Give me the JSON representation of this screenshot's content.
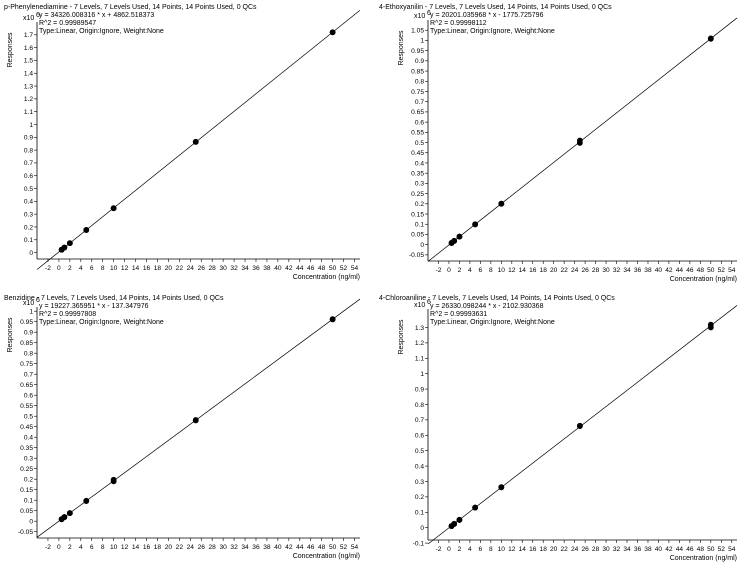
{
  "chart_data": [
    {
      "type": "scatter",
      "title": "p-Phenylenediamine - 7 Levels, 7 Levels Used, 14 Points, 14 Points Used, 0 QCs",
      "equation": "y = 34326.008316 * x + 4862.518373",
      "r2": "R^2 = 0.99989547",
      "type_line": "Type:Linear, Origin:Ignore, Weight:None",
      "ylabel": "Responses",
      "y_exponent": "x10",
      "y_exponent_power": "6",
      "xlabel": "Concentration (ng/ml)",
      "xlim": [
        -4,
        55
      ],
      "ylim": [
        -0.05,
        1.8
      ],
      "x_ticks": [
        "-2",
        "0",
        "2",
        "4",
        "6",
        "8",
        "10",
        "12",
        "14",
        "16",
        "18",
        "20",
        "22",
        "24",
        "26",
        "28",
        "30",
        "32",
        "34",
        "36",
        "38",
        "40",
        "42",
        "44",
        "46",
        "48",
        "50",
        "52",
        "54"
      ],
      "y_ticks": [
        "0",
        "0.1",
        "0.2",
        "0.3",
        "0.4",
        "0.5",
        "0.6",
        "0.7",
        "0.8",
        "0.9",
        "1",
        "1.1",
        "1.2",
        "1.3",
        "1.4",
        "1.5",
        "1.6",
        "1.7"
      ],
      "points": [
        [
          0.5,
          0.022
        ],
        [
          0.5,
          0.023
        ],
        [
          1,
          0.039
        ],
        [
          1,
          0.04
        ],
        [
          2,
          0.073
        ],
        [
          2,
          0.074
        ],
        [
          5,
          0.176
        ],
        [
          5,
          0.177
        ],
        [
          10,
          0.346
        ],
        [
          10,
          0.347
        ],
        [
          25,
          0.864
        ],
        [
          25,
          0.865
        ],
        [
          50,
          1.719
        ],
        [
          50,
          1.72
        ]
      ],
      "fit": [
        -4,
        55
      ]
    },
    {
      "type": "scatter",
      "title": "4-Ethoxyanilin - 7 Levels, 7 Levels Used, 14 Points, 14 Points Used, 0 QCs",
      "equation": "y = 20201.035968 * x - 1775.725796",
      "r2": "R^2 = 0.99998112",
      "type_line": "Type:Linear, Origin:Ignore, Weight:None",
      "ylabel": "Responses",
      "y_exponent": "x10",
      "y_exponent_power": "6",
      "xlabel": "Concentration (ng/ml)",
      "xlim": [
        -4,
        55
      ],
      "ylim": [
        -0.08,
        1.1
      ],
      "x_ticks": [
        "-2",
        "0",
        "2",
        "4",
        "6",
        "8",
        "10",
        "12",
        "14",
        "16",
        "18",
        "20",
        "22",
        "24",
        "26",
        "28",
        "30",
        "32",
        "34",
        "36",
        "38",
        "40",
        "42",
        "44",
        "46",
        "48",
        "50",
        "52",
        "54"
      ],
      "y_ticks": [
        "-0.05",
        "0",
        "0.05",
        "0.1",
        "0.15",
        "0.2",
        "0.25",
        "0.3",
        "0.35",
        "0.4",
        "0.45",
        "0.5",
        "0.55",
        "0.6",
        "0.65",
        "0.7",
        "0.75",
        "0.8",
        "0.85",
        "0.9",
        "0.95",
        "1",
        "1.05"
      ],
      "points": [
        [
          0.5,
          0.008
        ],
        [
          0.5,
          0.009
        ],
        [
          1,
          0.018
        ],
        [
          1,
          0.019
        ],
        [
          2,
          0.039
        ],
        [
          2,
          0.04
        ],
        [
          5,
          0.099
        ],
        [
          5,
          0.1
        ],
        [
          10,
          0.2
        ],
        [
          10,
          0.201
        ],
        [
          25,
          0.498
        ],
        [
          25,
          0.51
        ],
        [
          50,
          1.008
        ],
        [
          50,
          1.01
        ]
      ],
      "fit": [
        -4,
        55
      ]
    },
    {
      "type": "scatter",
      "title": "Benzidine - 7 Levels, 7 Levels Used, 14 Points, 14 Points Used, 0 QCs",
      "equation": "y = 19227.365951 * x - 137.347976",
      "r2": "R^2 = 0.99997808",
      "type_line": "Type:Linear, Origin:Ignore, Weight:None",
      "ylabel": "Responses",
      "y_exponent": "x10",
      "y_exponent_power": "6",
      "xlabel": "Concentration (ng/ml)",
      "xlim": [
        -4,
        55
      ],
      "ylim": [
        -0.08,
        1.02
      ],
      "x_ticks": [
        "-2",
        "0",
        "2",
        "4",
        "6",
        "8",
        "10",
        "12",
        "14",
        "16",
        "18",
        "20",
        "22",
        "24",
        "26",
        "28",
        "30",
        "32",
        "34",
        "36",
        "38",
        "40",
        "42",
        "44",
        "46",
        "48",
        "50",
        "52",
        "54"
      ],
      "y_ticks": [
        "-0.05",
        "0",
        "0.05",
        "0.1",
        "0.15",
        "0.2",
        "0.25",
        "0.3",
        "0.35",
        "0.4",
        "0.45",
        "0.5",
        "0.55",
        "0.6",
        "0.65",
        "0.7",
        "0.75",
        "0.8",
        "0.85",
        "0.9",
        "0.95",
        "1"
      ],
      "points": [
        [
          0.5,
          0.009
        ],
        [
          0.5,
          0.01
        ],
        [
          1,
          0.019
        ],
        [
          1,
          0.02
        ],
        [
          2,
          0.038
        ],
        [
          2,
          0.039
        ],
        [
          5,
          0.096
        ],
        [
          5,
          0.097
        ],
        [
          10,
          0.19
        ],
        [
          10,
          0.197
        ],
        [
          25,
          0.48
        ],
        [
          25,
          0.482
        ],
        [
          50,
          0.961
        ],
        [
          50,
          0.962
        ]
      ],
      "fit": [
        -4,
        55
      ]
    },
    {
      "type": "scatter",
      "title": "4-Chloroaniline - 7 Levels, 7 Levels Used, 14 Points, 14 Points Used, 0 QCs",
      "equation": "y = 26330.098244 * x - 2102.930368",
      "r2": "R^2 = 0.99993631",
      "type_line": "Type:Linear, Origin:Ignore, Weight:None",
      "ylabel": "Responses",
      "y_exponent": "x10",
      "y_exponent_power": "6",
      "xlabel": "Concentration (ng/ml)",
      "xlim": [
        -4,
        55
      ],
      "ylim": [
        -0.08,
        1.42
      ],
      "x_ticks": [
        "-2",
        "0",
        "2",
        "4",
        "6",
        "8",
        "10",
        "12",
        "14",
        "16",
        "18",
        "20",
        "22",
        "24",
        "26",
        "28",
        "30",
        "32",
        "34",
        "36",
        "38",
        "40",
        "42",
        "44",
        "46",
        "48",
        "50",
        "52",
        "54"
      ],
      "y_ticks": [
        "-0.1",
        "0",
        "0.1",
        "0.2",
        "0.3",
        "0.4",
        "0.5",
        "0.6",
        "0.7",
        "0.8",
        "0.9",
        "1",
        "1.1",
        "1.2",
        "1.3"
      ],
      "points": [
        [
          0.5,
          0.01
        ],
        [
          0.5,
          0.011
        ],
        [
          1,
          0.024
        ],
        [
          1,
          0.025
        ],
        [
          2,
          0.05
        ],
        [
          2,
          0.051
        ],
        [
          5,
          0.13
        ],
        [
          5,
          0.131
        ],
        [
          10,
          0.262
        ],
        [
          10,
          0.263
        ],
        [
          25,
          0.66
        ],
        [
          25,
          0.662
        ],
        [
          50,
          1.3
        ],
        [
          50,
          1.318
        ]
      ],
      "fit": [
        -4,
        55
      ]
    }
  ]
}
